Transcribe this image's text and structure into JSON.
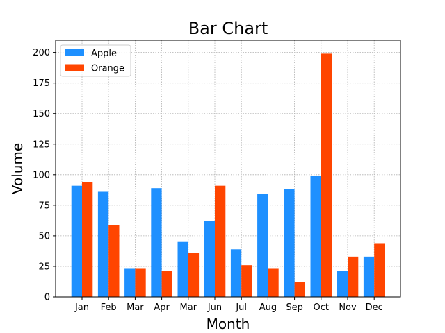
{
  "chart_data": {
    "type": "bar",
    "title": "Bar Chart",
    "xlabel": "Month",
    "ylabel": "Volume",
    "categories": [
      "Jan",
      "Feb",
      "Mar",
      "Apr",
      "Mar",
      "Jun",
      "Jul",
      "Aug",
      "Sep",
      "Oct",
      "Nov",
      "Dec"
    ],
    "series": [
      {
        "name": "Apple",
        "color": "#1E90FF",
        "values": [
          91,
          86,
          23,
          89,
          45,
          62,
          39,
          84,
          88,
          99,
          21,
          33
        ]
      },
      {
        "name": "Orange",
        "color": "#FF4500",
        "values": [
          94,
          59,
          23,
          21,
          36,
          91,
          26,
          23,
          12,
          199,
          33,
          44
        ]
      }
    ],
    "ylim": [
      0,
      210
    ],
    "yticks": [
      0,
      25,
      50,
      75,
      100,
      125,
      150,
      175,
      200
    ],
    "grid": true,
    "legend_position": "top-left"
  }
}
